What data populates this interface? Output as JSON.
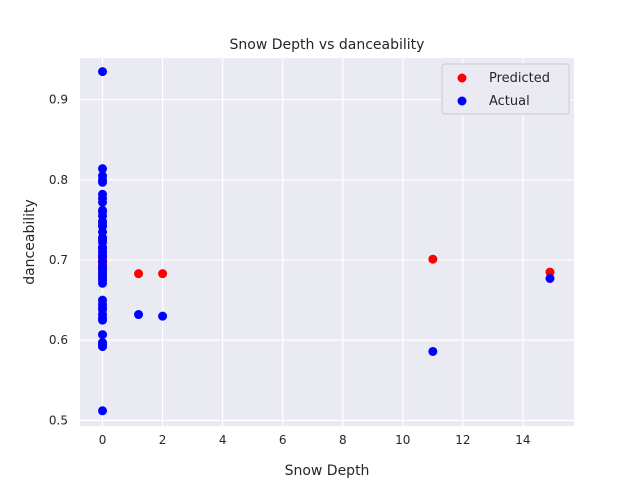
{
  "chart_data": {
    "type": "scatter",
    "title": "Snow Depth vs danceability",
    "xlabel": "Snow Depth",
    "ylabel": "danceability",
    "xlim": [
      -0.75,
      15.7
    ],
    "ylim": [
      0.493,
      0.952
    ],
    "xticks": [
      0,
      2,
      4,
      6,
      8,
      10,
      12,
      14
    ],
    "yticks": [
      0.5,
      0.6,
      0.7,
      0.8,
      0.9
    ],
    "ytick_labels": [
      "0.5",
      "0.6",
      "0.7",
      "0.8",
      "0.9"
    ],
    "grid": true,
    "legend_position": "top-right",
    "series": [
      {
        "name": "Predicted",
        "color": "#ff0000",
        "x": [
          0,
          0,
          0,
          0,
          0,
          0,
          0,
          1.2,
          2.0,
          11.0,
          14.9
        ],
        "y": [
          0.686,
          0.689,
          0.691,
          0.694,
          0.697,
          0.7,
          0.703,
          0.683,
          0.683,
          0.701,
          0.685
        ]
      },
      {
        "name": "Actual",
        "color": "#0000ff",
        "x": [
          0,
          0,
          0,
          0,
          0,
          0,
          0,
          0,
          0,
          0,
          0,
          0,
          0,
          0,
          0,
          0,
          0,
          0,
          0,
          0,
          0,
          0,
          0,
          0,
          0,
          0,
          0,
          0,
          0,
          0,
          0,
          0,
          0,
          0,
          0,
          0,
          0,
          0,
          0,
          0,
          0,
          0,
          0,
          0,
          1.2,
          2.0,
          11.0,
          14.9
        ],
        "y": [
          0.935,
          0.814,
          0.805,
          0.8,
          0.797,
          0.782,
          0.777,
          0.772,
          0.762,
          0.755,
          0.748,
          0.742,
          0.735,
          0.728,
          0.722,
          0.716,
          0.71,
          0.704,
          0.698,
          0.692,
          0.687,
          0.683,
          0.679,
          0.675,
          0.671,
          0.65,
          0.645,
          0.638,
          0.632,
          0.625,
          0.607,
          0.597,
          0.592,
          0.512,
          0.76,
          0.745,
          0.725,
          0.714,
          0.706,
          0.69,
          0.681,
          0.641,
          0.628,
          0.594,
          0.632,
          0.63,
          0.586,
          0.677
        ]
      }
    ]
  }
}
